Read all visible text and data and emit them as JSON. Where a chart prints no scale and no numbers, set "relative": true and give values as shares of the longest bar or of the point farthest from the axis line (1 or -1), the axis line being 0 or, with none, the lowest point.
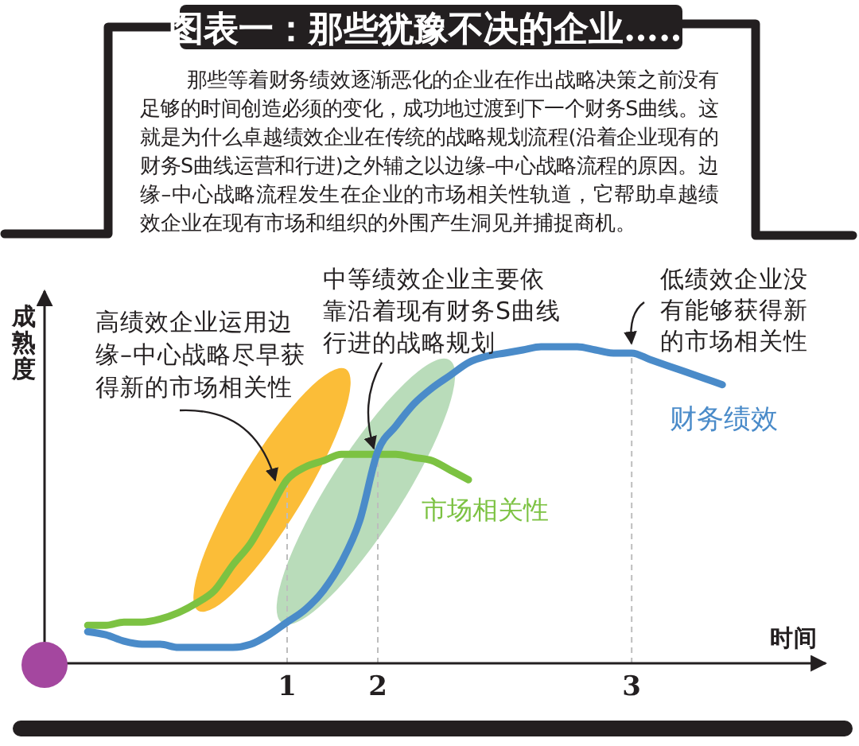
{
  "chart_data": {
    "type": "line",
    "title": "图表一：那些犹豫不决的企业……",
    "subtitle": "那些等着财务绩效逐渐恶化的企业在作出战略决策之前没有足够的时间创造必须的变化，成功地过渡到下一个财务S曲线。这就是为什么卓越绩效企业在传统的战略规划流程(沿着企业现有的财务S曲线运营和行进)之外辅之以边缘–中心战略流程的原因。边缘–中心战略流程发生在企业的市场相关性轨道，它帮助卓越绩效企业在现有市场和组织的外围产生洞见并捕捉商机。",
    "xlabel": "时间",
    "ylabel": "成熟度",
    "relative": true,
    "categories": [
      null,
      null,
      null,
      null,
      null,
      null,
      null,
      null,
      null,
      null,
      null,
      "1",
      null,
      null,
      null,
      null,
      "2",
      null,
      null,
      null,
      null,
      null,
      null,
      null,
      null,
      null,
      null,
      null,
      null,
      null,
      "3",
      null,
      null,
      null,
      null,
      null
    ],
    "series": [
      {
        "name": "财务绩效",
        "color": "#4a8bc9",
        "values": [
          0.1,
          0.09,
          0.07,
          0.06,
          0.06,
          0.05,
          0.05,
          0.05,
          0.05,
          0.06,
          0.09,
          0.13,
          0.17,
          0.23,
          0.32,
          0.45,
          0.67,
          0.75,
          0.82,
          0.87,
          0.91,
          0.95,
          0.97,
          0.98,
          0.99,
          1,
          1,
          1,
          0.99,
          0.98,
          0.98,
          0.96,
          0.94,
          0.92,
          0.9,
          0.88
        ]
      },
      {
        "name": "市场相关性",
        "color": "#7cc242",
        "values": [
          0.12,
          0.12,
          0.13,
          0.13,
          0.14,
          0.16,
          0.19,
          0.23,
          0.31,
          0.38,
          0.48,
          0.58,
          0.62,
          0.64,
          0.66,
          0.66,
          0.66,
          0.66,
          0.65,
          0.64,
          0.61,
          0.58,
          null,
          null,
          null,
          null,
          null,
          null,
          null,
          null,
          null,
          null,
          null,
          null,
          null,
          null
        ]
      }
    ],
    "ref_lines": [
      {
        "axis": "x",
        "value": "1",
        "color": "#bdbdbd",
        "line_style": "dashed"
      },
      {
        "axis": "x",
        "value": "2",
        "color": "#bdbdbd",
        "line_style": "dashed"
      },
      {
        "axis": "x",
        "value": "3",
        "color": "#bdbdbd",
        "line_style": "dashed"
      }
    ],
    "annotations": [
      "高绩效企业运用边缘–中心战略尽早获得新的市场相关性",
      "中等绩效企业主要依靠沿着现有财务S曲线行进的战略规划",
      "低绩效企业没有能够获得新的市场相关性"
    ]
  }
}
